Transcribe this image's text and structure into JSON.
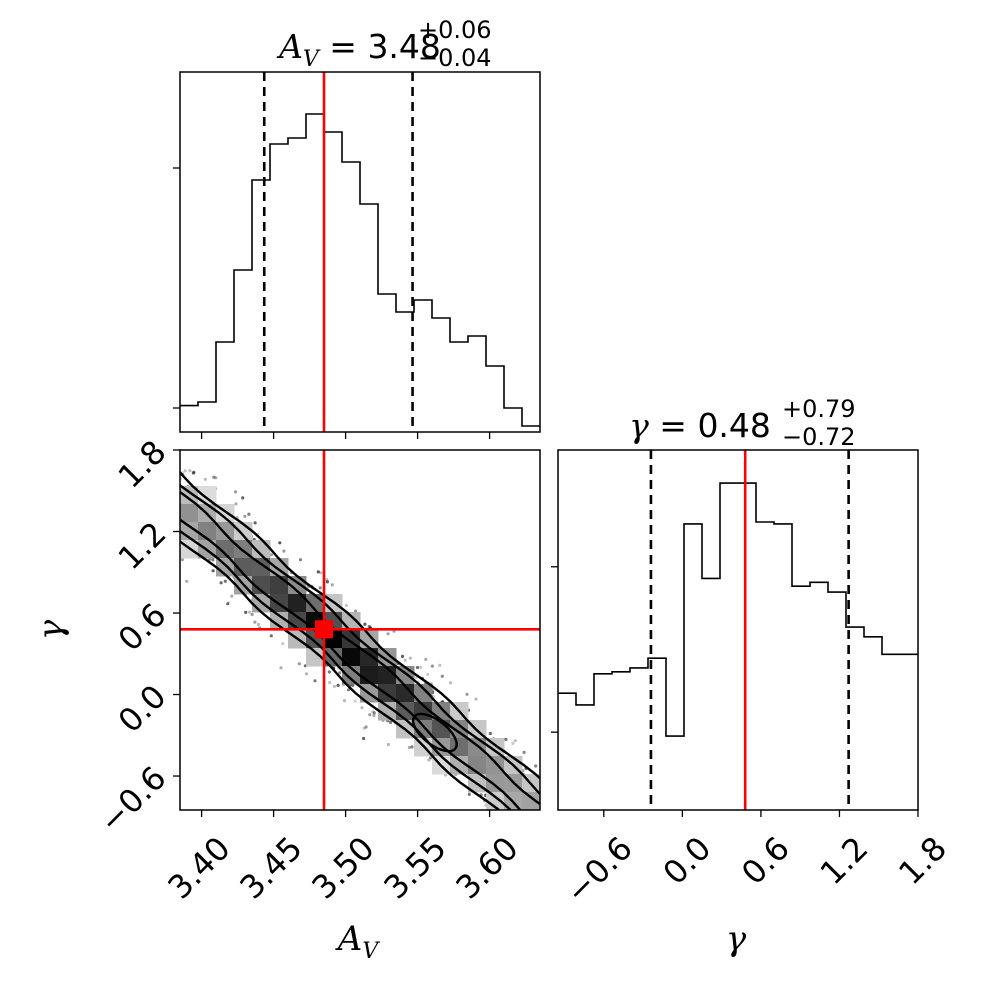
{
  "chart_data": [
    {
      "type": "histogram",
      "panel": "hist-av",
      "title": {
        "variable": "A",
        "variable_sub": "V",
        "median": "3.48",
        "plus": "+0.06",
        "minus": "−0.04"
      },
      "xlim": [
        3.385,
        3.635
      ],
      "bin_edges": [
        3.385,
        3.3975,
        3.41,
        3.4225,
        3.435,
        3.4475,
        3.46,
        3.4725,
        3.485,
        3.4975,
        3.51,
        3.5225,
        3.535,
        3.5475,
        3.56,
        3.5725,
        3.585,
        3.5975,
        3.61,
        3.6225,
        3.635
      ],
      "counts": [
        22,
        25,
        75,
        135,
        210,
        240,
        245,
        265,
        250,
        225,
        190,
        115,
        100,
        110,
        95,
        75,
        80,
        55,
        20,
        5
      ],
      "ylim": [
        0,
        300
      ],
      "yticks": [
        20,
        220
      ],
      "quantiles": [
        3.4435,
        3.5465
      ],
      "truth": 3.485,
      "colors": {
        "hist": "#000000",
        "truth": "#ff0000",
        "quantile": "#000000"
      }
    },
    {
      "type": "histogram",
      "panel": "hist-gamma",
      "title": {
        "variable": "γ",
        "median": "0.48",
        "plus": "+0.79",
        "minus": "−0.72"
      },
      "xlim": [
        -0.95,
        1.8
      ],
      "xticks": [
        "−0.6",
        "0.0",
        "0.6",
        "1.2",
        "1.8"
      ],
      "xtick_values": [
        -0.6,
        0.0,
        0.6,
        1.2,
        1.8
      ],
      "xlabel": "γ",
      "bin_edges": [
        -0.95,
        -0.8125,
        -0.675,
        -0.5375,
        -0.4,
        -0.2625,
        -0.125,
        0.0125,
        0.15,
        0.2875,
        0.425,
        0.5625,
        0.7,
        0.8375,
        0.975,
        1.1125,
        1.25,
        1.3875,
        1.525,
        1.6625,
        1.8
      ],
      "counts": [
        60,
        54,
        70,
        71,
        73,
        78,
        38,
        147,
        119,
        168,
        168,
        148,
        147,
        115,
        117,
        112,
        94,
        89,
        80,
        80
      ],
      "ylim": [
        0,
        185
      ],
      "yticks": [
        40,
        125
      ],
      "quantiles": [
        -0.24,
        1.27
      ],
      "truth": 0.48,
      "colors": {
        "hist": "#000000",
        "truth": "#ff0000",
        "quantile": "#000000"
      }
    },
    {
      "type": "scatter",
      "panel": "joint-av-gamma",
      "xlabel": "A",
      "xlabel_sub": "V",
      "ylabel": "γ",
      "xlim": [
        3.385,
        3.635
      ],
      "ylim": [
        -0.85,
        1.8
      ],
      "xticks": [
        "3.40",
        "3.45",
        "3.50",
        "3.55",
        "3.60"
      ],
      "xtick_values": [
        3.4,
        3.45,
        3.5,
        3.55,
        3.6
      ],
      "yticks": [
        "−0.6",
        "0.0",
        "0.6",
        "1.2",
        "1.8"
      ],
      "ytick_values": [
        -0.6,
        0.0,
        0.6,
        1.2,
        1.8
      ],
      "relation": {
        "slope": -9.1,
        "intercept_at_av": 3.485,
        "gamma_at_intercept": 0.48,
        "scatter_sigma": 0.018
      },
      "truth": {
        "x": 3.485,
        "y": 0.48
      },
      "colors": {
        "points": "#000000",
        "truth": "#ff0000",
        "contour": "#000000"
      }
    }
  ]
}
